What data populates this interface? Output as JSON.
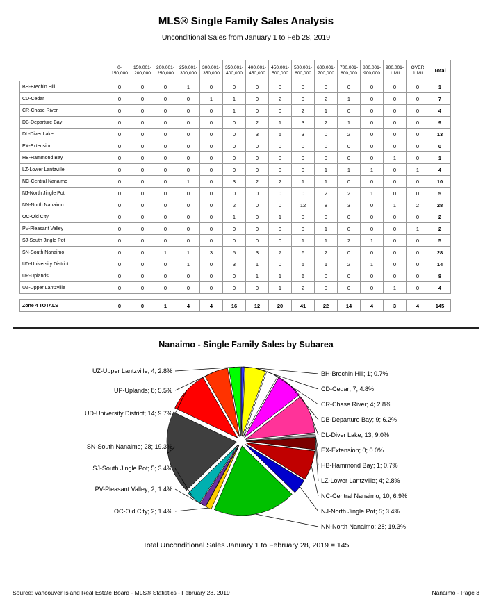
{
  "header": {
    "title": "MLS® Single Family Sales Analysis",
    "subtitle": "Unconditional Sales from January 1 to Feb 28, 2019"
  },
  "table": {
    "columns": [
      {
        "line1": "0-",
        "line2": "150,000"
      },
      {
        "line1": "150,001-",
        "line2": "200,000"
      },
      {
        "line1": "200,001-",
        "line2": "250,000"
      },
      {
        "line1": "250,001-",
        "line2": "300,000"
      },
      {
        "line1": "300,001-",
        "line2": "350,000"
      },
      {
        "line1": "350,001-",
        "line2": "400,000"
      },
      {
        "line1": "400,001-",
        "line2": "450,000"
      },
      {
        "line1": "450,001-",
        "line2": "500,000"
      },
      {
        "line1": "500,001-",
        "line2": "600,000"
      },
      {
        "line1": "600,001-",
        "line2": "700,000"
      },
      {
        "line1": "700,001-",
        "line2": "800,000"
      },
      {
        "line1": "800,001-",
        "line2": "900,000"
      },
      {
        "line1": "900,001-",
        "line2": "1 Mil"
      },
      {
        "line1": "OVER",
        "line2": "1 Mil"
      },
      {
        "line1": "Total",
        "line2": ""
      }
    ],
    "rows": [
      {
        "label": "BH-Brechin Hill",
        "values": [
          0,
          0,
          0,
          1,
          0,
          0,
          0,
          0,
          0,
          0,
          0,
          0,
          0,
          0
        ],
        "total": 1
      },
      {
        "label": "CD-Cedar",
        "values": [
          0,
          0,
          0,
          0,
          1,
          1,
          0,
          2,
          0,
          2,
          1,
          0,
          0,
          0
        ],
        "total": 7
      },
      {
        "label": "CR-Chase River",
        "values": [
          0,
          0,
          0,
          0,
          0,
          1,
          0,
          0,
          2,
          1,
          0,
          0,
          0,
          0
        ],
        "total": 4
      },
      {
        "label": "DB-Departure Bay",
        "values": [
          0,
          0,
          0,
          0,
          0,
          0,
          2,
          1,
          3,
          2,
          1,
          0,
          0,
          0
        ],
        "total": 9
      },
      {
        "label": "DL-Diver Lake",
        "values": [
          0,
          0,
          0,
          0,
          0,
          0,
          3,
          5,
          3,
          0,
          2,
          0,
          0,
          0
        ],
        "total": 13
      },
      {
        "label": "EX-Extension",
        "values": [
          0,
          0,
          0,
          0,
          0,
          0,
          0,
          0,
          0,
          0,
          0,
          0,
          0,
          0
        ],
        "total": 0
      },
      {
        "label": "HB-Hammond Bay",
        "values": [
          0,
          0,
          0,
          0,
          0,
          0,
          0,
          0,
          0,
          0,
          0,
          0,
          1,
          0
        ],
        "total": 1
      },
      {
        "label": "LZ-Lower Lantzville",
        "values": [
          0,
          0,
          0,
          0,
          0,
          0,
          0,
          0,
          0,
          1,
          1,
          1,
          0,
          1
        ],
        "total": 4
      },
      {
        "label": "NC-Central Nanaimo",
        "values": [
          0,
          0,
          0,
          1,
          0,
          3,
          2,
          2,
          1,
          1,
          0,
          0,
          0,
          0
        ],
        "total": 10
      },
      {
        "label": "NJ-North Jingle Pot",
        "values": [
          0,
          0,
          0,
          0,
          0,
          0,
          0,
          0,
          0,
          2,
          2,
          1,
          0,
          0
        ],
        "total": 5
      },
      {
        "label": "NN-North Nanaimo",
        "values": [
          0,
          0,
          0,
          0,
          0,
          2,
          0,
          0,
          12,
          8,
          3,
          0,
          1,
          2
        ],
        "total": 28
      },
      {
        "label": "OC-Old City",
        "values": [
          0,
          0,
          0,
          0,
          0,
          1,
          0,
          1,
          0,
          0,
          0,
          0,
          0,
          0
        ],
        "total": 2
      },
      {
        "label": "PV-Pleasant Valley",
        "values": [
          0,
          0,
          0,
          0,
          0,
          0,
          0,
          0,
          0,
          1,
          0,
          0,
          0,
          1
        ],
        "total": 2
      },
      {
        "label": "SJ-South Jingle Pot",
        "values": [
          0,
          0,
          0,
          0,
          0,
          0,
          0,
          0,
          1,
          1,
          2,
          1,
          0,
          0
        ],
        "total": 5
      },
      {
        "label": "SN-South Nanaimo",
        "values": [
          0,
          0,
          1,
          1,
          3,
          5,
          3,
          7,
          6,
          2,
          0,
          0,
          0,
          0
        ],
        "total": 28
      },
      {
        "label": "UD-University District",
        "values": [
          0,
          0,
          0,
          1,
          0,
          3,
          1,
          0,
          5,
          1,
          2,
          1,
          0,
          0
        ],
        "total": 14
      },
      {
        "label": "UP-Uplands",
        "values": [
          0,
          0,
          0,
          0,
          0,
          0,
          1,
          1,
          6,
          0,
          0,
          0,
          0,
          0
        ],
        "total": 8
      },
      {
        "label": "UZ-Upper Lantzville",
        "values": [
          0,
          0,
          0,
          0,
          0,
          0,
          0,
          1,
          2,
          0,
          0,
          0,
          1,
          0
        ],
        "total": 4
      }
    ],
    "totals": {
      "label": "Zone 4 TOTALS",
      "values": [
        0,
        0,
        1,
        4,
        4,
        16,
        12,
        20,
        41,
        22,
        14,
        4,
        3,
        4
      ],
      "total": 145
    }
  },
  "chart": {
    "title": "Nanaimo - Single Family Sales by Subarea",
    "caption": "Total Unconditional Sales January 1 to February 28, 2019 = 145"
  },
  "chart_data": {
    "type": "pie",
    "title": "Nanaimo - Single Family Sales by Subarea",
    "total": 145,
    "legend_position": "around",
    "slices": [
      {
        "code": "BH",
        "name": "BH-Brechin Hill",
        "value": 1,
        "pct": "0.7%",
        "color": "#3333FF"
      },
      {
        "code": "CD",
        "name": "CD-Cedar",
        "value": 7,
        "pct": "4.8%",
        "color": "#FFFF00"
      },
      {
        "code": "CR",
        "name": "CR-Chase River",
        "value": 4,
        "pct": "2.8%",
        "color": "#FFFFFF"
      },
      {
        "code": "DB",
        "name": "DB-Departure Bay",
        "value": 9,
        "pct": "6.2%",
        "color": "#FF00FF"
      },
      {
        "code": "DL",
        "name": "DL-Diver Lake",
        "value": 13,
        "pct": "9.0%",
        "color": "#FF3399"
      },
      {
        "code": "EX",
        "name": "EX-Extension",
        "value": 0,
        "pct": "0.0%",
        "color": "#808080"
      },
      {
        "code": "HB",
        "name": "HB-Hammond Bay",
        "value": 1,
        "pct": "0.7%",
        "color": "#999999"
      },
      {
        "code": "LZ",
        "name": "LZ-Lower Lantzville",
        "value": 4,
        "pct": "2.8%",
        "color": "#7B0000"
      },
      {
        "code": "NC",
        "name": "NC-Central Nanaimo",
        "value": 10,
        "pct": "6.9%",
        "color": "#C00000"
      },
      {
        "code": "NJ",
        "name": "NJ-North Jingle Pot",
        "value": 5,
        "pct": "3.4%",
        "color": "#0000CC"
      },
      {
        "code": "NN",
        "name": "NN-North Nanaimo",
        "value": 28,
        "pct": "19.3%",
        "color": "#00C000"
      },
      {
        "code": "OC",
        "name": "OC-Old City",
        "value": 2,
        "pct": "1.4%",
        "color": "#FFCC00"
      },
      {
        "code": "PV",
        "name": "PV-Pleasant Valley",
        "value": 2,
        "pct": "1.4%",
        "color": "#7030A0"
      },
      {
        "code": "SJ",
        "name": "SJ-South Jingle Pot",
        "value": 5,
        "pct": "3.4%",
        "color": "#00B0B0"
      },
      {
        "code": "SN",
        "name": "SN-South Nanaimo",
        "value": 28,
        "pct": "19.3%",
        "color": "#3F3F3F"
      },
      {
        "code": "UD",
        "name": "UD-University District",
        "value": 14,
        "pct": "9.7%",
        "color": "#FF0000"
      },
      {
        "code": "UP",
        "name": "UP-Uplands",
        "value": 8,
        "pct": "5.5%",
        "color": "#FF3300"
      },
      {
        "code": "UZ",
        "name": "UZ-Upper Lantzville",
        "value": 4,
        "pct": "2.8%",
        "color": "#00FF00"
      }
    ]
  },
  "footer": {
    "source": "Source: Vancouver Island Real Estate Board - MLS® Statistics - February 28, 2019",
    "page": "Nanaimo - Page 3"
  }
}
